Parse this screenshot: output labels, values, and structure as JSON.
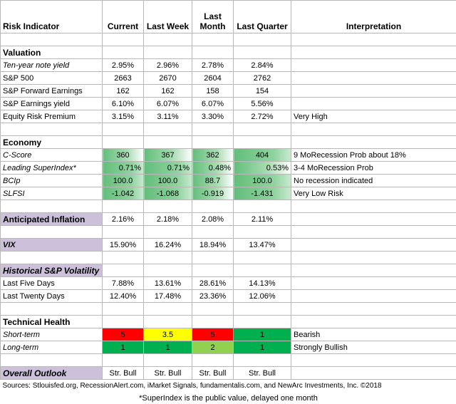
{
  "headers": {
    "indicator": "Risk Indicator",
    "current": "Current",
    "last_week": "Last Week",
    "last_month_1": "Last",
    "last_month_2": "Month",
    "last_quarter": "Last Quarter",
    "interpretation": "Interpretation"
  },
  "valuation": {
    "title": "Valuation",
    "rows": [
      {
        "label": "Ten-year note yield",
        "current": "2.95%",
        "week": "2.96%",
        "month": "2.78%",
        "quarter": "2.84%",
        "interp": ""
      },
      {
        "label": "S&P 500",
        "current": "2663",
        "week": "2670",
        "month": "2604",
        "quarter": "2762",
        "interp": ""
      },
      {
        "label": "S&P Forward Earnings",
        "current": "162",
        "week": "162",
        "month": "158",
        "quarter": "154",
        "interp": ""
      },
      {
        "label": "S&P Earnings yield",
        "current": "6.10%",
        "week": "6.07%",
        "month": "6.07%",
        "quarter": "5.56%",
        "interp": ""
      },
      {
        "label": "Equity Risk Premium",
        "current": "3.15%",
        "week": "3.11%",
        "month": "3.30%",
        "quarter": "2.72%",
        "interp": "Very High"
      }
    ]
  },
  "economy": {
    "title": "Economy",
    "rows": [
      {
        "label": "C-Score",
        "current": "360",
        "week": "367",
        "month": "362",
        "quarter": "404",
        "interp": "9 MoRecession Prob about 18%"
      },
      {
        "label": "Leading SuperIndex*",
        "current": "0.71%",
        "week": "0.71%",
        "month": "0.48%",
        "quarter": "0.53%",
        "interp": "3-4 MoRecession Prob"
      },
      {
        "label": "BCIp",
        "current": "100.0",
        "week": "100.0",
        "month": "88.7",
        "quarter": "100.0",
        "interp": "No recession indicated"
      },
      {
        "label": "SLFSI",
        "current": "-1.042",
        "week": "-1.068",
        "month": "-0.919",
        "quarter": "-1.431",
        "interp": "Very Low Risk"
      }
    ]
  },
  "inflation": {
    "label": "Anticipated Inflation",
    "current": "2.16%",
    "week": "2.18%",
    "month": "2.08%",
    "quarter": "2.11%"
  },
  "vix": {
    "label": "VIX",
    "current": "15.90%",
    "week": "16.24%",
    "month": "18.94%",
    "quarter": "13.47%"
  },
  "volatility": {
    "title": "Historical  S&P Volatility",
    "rows": [
      {
        "label": "Last Five Days",
        "current": "7.88%",
        "week": "13.61%",
        "month": "28.61%",
        "quarter": "14.13%"
      },
      {
        "label": "Last Twenty Days",
        "current": "12.40%",
        "week": "17.48%",
        "month": "23.36%",
        "quarter": "12.06%"
      }
    ]
  },
  "technical": {
    "title": "Technical Health",
    "rows": [
      {
        "label": "Short-term",
        "current": "5",
        "week": "3.5",
        "month": "5",
        "quarter": "1",
        "interp": "Bearish"
      },
      {
        "label": "Long-term",
        "current": "1",
        "week": "1",
        "month": "2",
        "quarter": "1",
        "interp": "Strongly Bullish"
      }
    ]
  },
  "outlook": {
    "label": "Overall Outlook",
    "current": "Str. Bull",
    "week": "Str. Bull",
    "month": "Str. Bull",
    "quarter": "Str. Bull"
  },
  "footer": {
    "sources": "Sources: Stlouisfed.org, RecessionAlert.com, iMarket Signals, fundamentalis.com, and NewArc Investments, Inc. ©2018",
    "note": "*SuperIndex is the public value, delayed one month"
  },
  "colors": {
    "bar_green": "#63be7b",
    "red": "#ff0000",
    "yellow": "#ffff00",
    "green": "#00b050",
    "light_green": "#92d050",
    "purple": "#ccc0da"
  }
}
